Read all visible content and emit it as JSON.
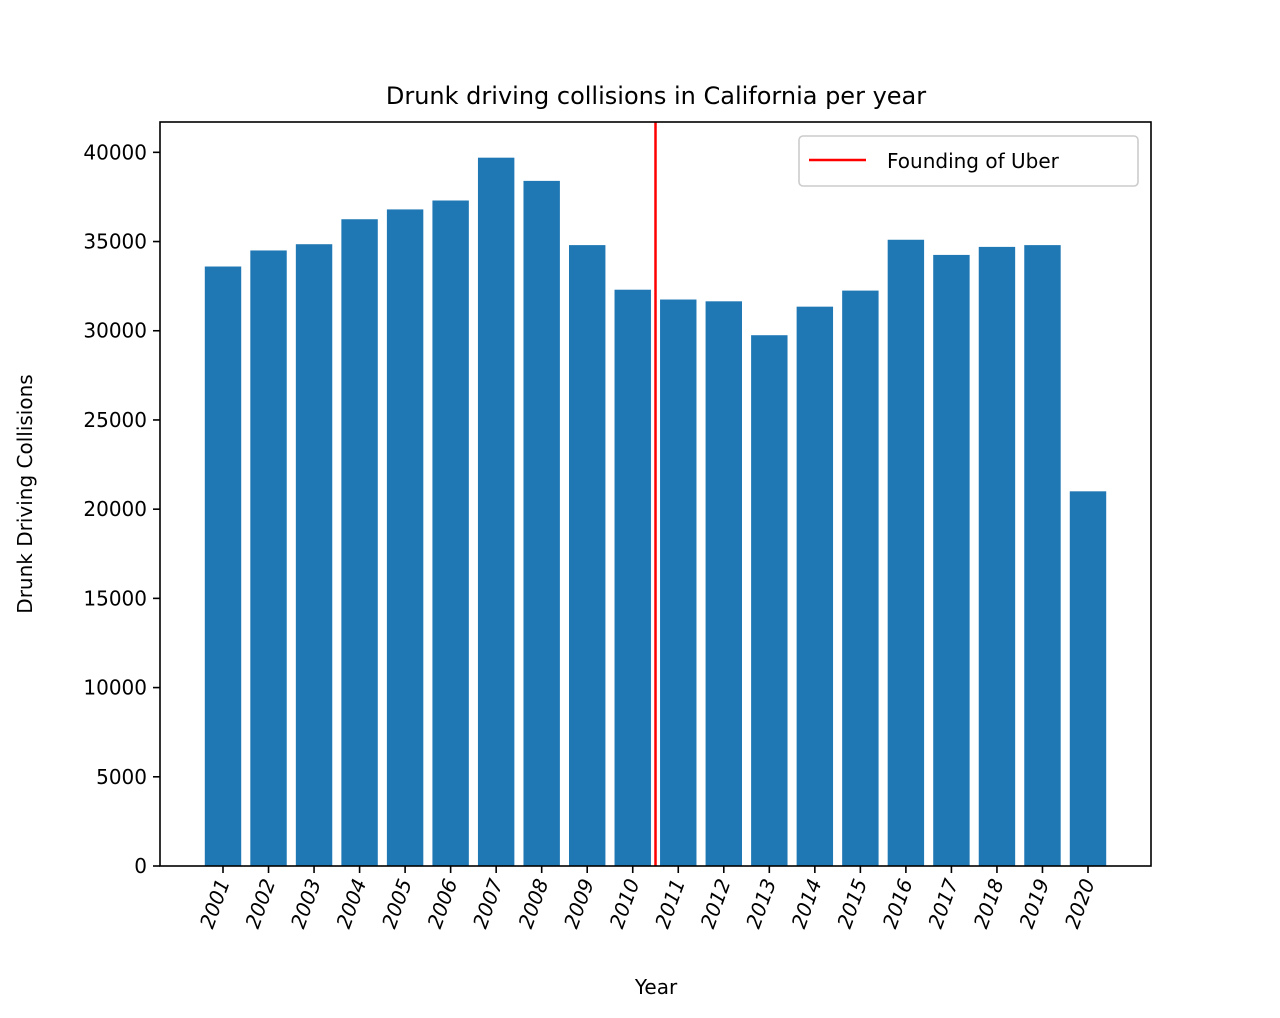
{
  "chart_data": {
    "type": "bar",
    "title": "Drunk driving collisions in California per year",
    "xlabel": "Year",
    "ylabel": "Drunk Driving Collisions",
    "categories": [
      "2001",
      "2002",
      "2003",
      "2004",
      "2005",
      "2006",
      "2007",
      "2008",
      "2009",
      "2010",
      "2011",
      "2012",
      "2013",
      "2014",
      "2015",
      "2016",
      "2017",
      "2018",
      "2019",
      "2020"
    ],
    "values": [
      33600,
      34500,
      34850,
      36250,
      36800,
      37300,
      39700,
      38400,
      34800,
      32300,
      31750,
      31650,
      29750,
      31350,
      32250,
      35100,
      34250,
      34700,
      34800,
      21000
    ],
    "ylim": [
      0,
      41700
    ],
    "yticks": [
      0,
      5000,
      10000,
      15000,
      20000,
      25000,
      30000,
      35000,
      40000
    ],
    "bar_color": "#1f77b4",
    "vline": {
      "x_between": [
        "2010",
        "2011"
      ],
      "label": "Founding of Uber",
      "color": "#ff0000"
    },
    "legend": {
      "placement": "top-right",
      "entries": [
        "Founding of Uber"
      ]
    },
    "grid": false
  }
}
